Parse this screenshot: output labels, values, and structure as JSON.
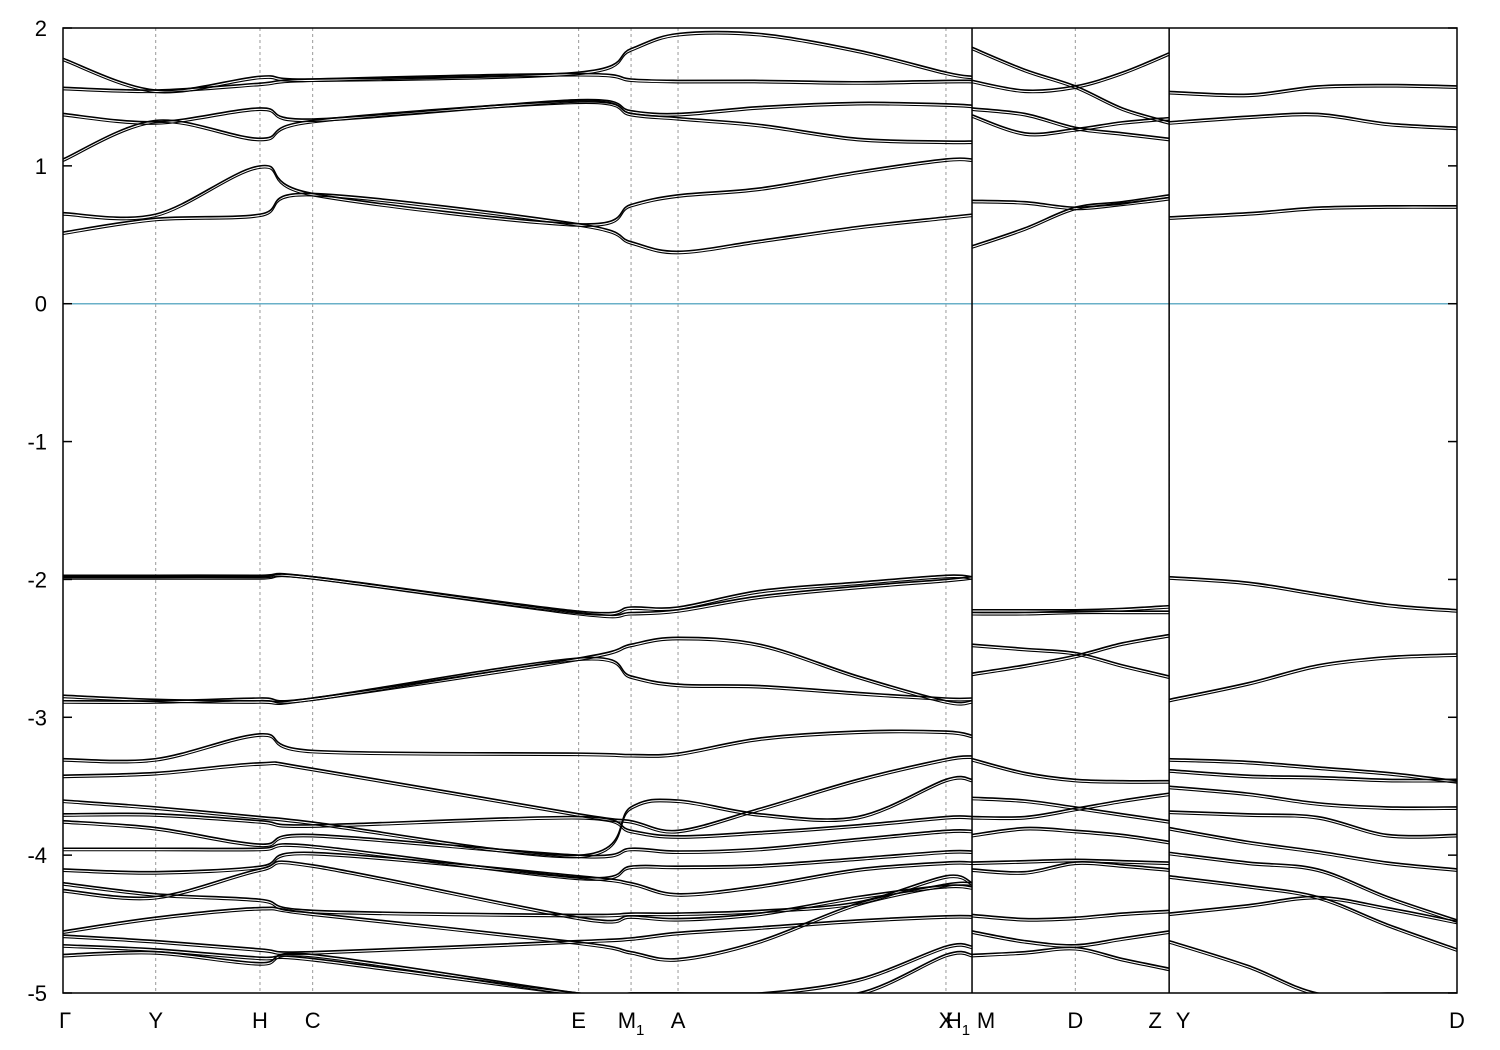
{
  "chart_data": {
    "type": "line",
    "title": "",
    "xlabel": "",
    "ylabel": "",
    "ylim": [
      -5,
      2
    ],
    "yticks": [
      2,
      1,
      0,
      -1,
      -2,
      -3,
      -4,
      -5
    ],
    "ytick_labels": [
      "2",
      "1",
      "0",
      "-1",
      "-2",
      "-3",
      "-4",
      "-5"
    ],
    "grid": "vertical dashed lines at high-symmetry points",
    "fermi_level": 0,
    "fermi_color": "#6ab0c8",
    "band_color": "#000000",
    "kpoints": [
      {
        "main": "Γ",
        "sub": "",
        "x": 0.0
      },
      {
        "main": "Y",
        "sub": "",
        "x": 0.0665
      },
      {
        "main": "H",
        "sub": "",
        "x": 0.1413
      },
      {
        "main": "C",
        "sub": "",
        "x": 0.1791
      },
      {
        "main": "E",
        "sub": "",
        "x": 0.3699
      },
      {
        "main": "M",
        "sub": "1",
        "x": 0.4075
      },
      {
        "main": "A",
        "sub": "",
        "x": 0.4412
      },
      {
        "main": "X",
        "sub": "",
        "x": 0.6334
      },
      {
        "main": "H",
        "sub": "1",
        "x": 0.6521
      },
      {
        "main": "M",
        "sub": "",
        "x": 0.6521
      },
      {
        "main": "D",
        "sub": "",
        "x": 0.7262
      },
      {
        "main": "Z",
        "sub": "",
        "x": 0.7935
      },
      {
        "main": "Y",
        "sub": "",
        "x": 0.7935
      },
      {
        "main": "D",
        "sub": "",
        "x": 1.0
      }
    ],
    "segments": [
      {
        "name": "Γ-Y-H-C-E-M1-A-X-H1",
        "x": [
          0.0,
          0.0665,
          0.1413,
          0.1791,
          0.3699,
          0.4075,
          0.4412,
          0.5,
          0.57,
          0.6334,
          0.6521
        ],
        "bands": [
          [
            -4.72,
            -4.7,
            -4.78,
            -4.72,
            -5.0,
            -5.0,
            -5.0,
            -5.0,
            -5.0,
            -4.72,
            -4.72
          ],
          [
            -4.65,
            -4.68,
            -4.74,
            -4.75,
            -5.0,
            -5.0,
            -5.0,
            -5.0,
            -4.9,
            -4.66,
            -4.66
          ],
          [
            -4.58,
            -4.62,
            -4.68,
            -4.7,
            -4.62,
            -4.6,
            -4.56,
            -4.52,
            -4.47,
            -4.44,
            -4.44
          ],
          [
            -4.55,
            -4.45,
            -4.38,
            -4.42,
            -4.63,
            -4.7,
            -4.75,
            -4.62,
            -4.35,
            -4.21,
            -4.2
          ],
          [
            -4.25,
            -4.3,
            -4.1,
            -4.07,
            -4.45,
            -4.44,
            -4.46,
            -4.42,
            -4.3,
            -4.22,
            -4.23
          ],
          [
            -4.2,
            -4.28,
            -4.32,
            -4.4,
            -4.43,
            -4.42,
            -4.42,
            -4.4,
            -4.34,
            -4.15,
            -4.2
          ],
          [
            -4.1,
            -4.12,
            -4.08,
            -3.98,
            -4.15,
            -4.2,
            -4.28,
            -4.22,
            -4.1,
            -4.05,
            -4.05
          ],
          [
            -3.95,
            -3.95,
            -3.95,
            -3.93,
            -4.16,
            -4.08,
            -4.08,
            -4.07,
            -4.02,
            -3.97,
            -3.97
          ],
          [
            -3.75,
            -3.8,
            -3.92,
            -3.85,
            -4.0,
            -3.95,
            -3.97,
            -3.95,
            -3.88,
            -3.82,
            -3.82
          ],
          [
            -3.7,
            -3.7,
            -3.75,
            -3.78,
            -3.72,
            -3.82,
            -3.86,
            -3.83,
            -3.78,
            -3.72,
            -3.72
          ],
          [
            -3.6,
            -3.65,
            -3.72,
            -3.76,
            -4.0,
            -3.65,
            -3.6,
            -3.7,
            -3.72,
            -3.45,
            -3.45
          ],
          [
            -3.42,
            -3.4,
            -3.33,
            -3.37,
            -3.7,
            -3.75,
            -3.82,
            -3.66,
            -3.45,
            -3.3,
            -3.28
          ],
          [
            -3.3,
            -3.3,
            -3.12,
            -3.24,
            -3.26,
            -3.27,
            -3.26,
            -3.15,
            -3.1,
            -3.1,
            -3.13
          ],
          [
            -2.88,
            -2.88,
            -2.86,
            -2.86,
            -2.57,
            -2.7,
            -2.76,
            -2.77,
            -2.82,
            -2.86,
            -2.86
          ],
          [
            -2.84,
            -2.87,
            -2.88,
            -2.86,
            -2.57,
            -2.47,
            -2.42,
            -2.47,
            -2.7,
            -2.88,
            -2.88
          ],
          [
            -1.98,
            -1.98,
            -1.98,
            -1.98,
            -2.23,
            -2.2,
            -2.2,
            -2.08,
            -2.02,
            -1.97,
            -1.98
          ],
          [
            -1.97,
            -1.97,
            -1.97,
            -1.98,
            -2.24,
            -2.24,
            -2.22,
            -2.12,
            -2.05,
            -2.0,
            -1.98
          ],
          [
            0.52,
            0.62,
            0.65,
            0.8,
            0.58,
            0.45,
            0.38,
            0.46,
            0.56,
            0.63,
            0.65
          ],
          [
            0.66,
            0.65,
            1.0,
            0.8,
            0.58,
            0.72,
            0.79,
            0.84,
            0.96,
            1.05,
            1.05
          ],
          [
            1.05,
            1.33,
            1.2,
            1.33,
            1.47,
            1.38,
            1.35,
            1.3,
            1.2,
            1.18,
            1.18
          ],
          [
            1.38,
            1.32,
            1.42,
            1.34,
            1.48,
            1.4,
            1.38,
            1.43,
            1.46,
            1.45,
            1.44
          ],
          [
            1.57,
            1.55,
            1.6,
            1.63,
            1.67,
            1.63,
            1.62,
            1.62,
            1.61,
            1.62,
            1.62
          ],
          [
            1.78,
            1.55,
            1.65,
            1.63,
            1.68,
            1.85,
            1.96,
            1.96,
            1.84,
            1.68,
            1.65
          ]
        ]
      },
      {
        "name": "M-D-Z",
        "x": [
          0.6521,
          0.69,
          0.7262,
          0.76,
          0.7935
        ],
        "bands": [
          [
            -4.72,
            -4.7,
            -4.67,
            -4.75,
            -4.82
          ],
          [
            -4.55,
            -4.62,
            -4.65,
            -4.6,
            -4.55
          ],
          [
            -4.43,
            -4.46,
            -4.45,
            -4.42,
            -4.4
          ],
          [
            -4.1,
            -4.12,
            -4.05,
            -4.07,
            -4.1
          ],
          [
            -4.05,
            -4.04,
            -4.03,
            -4.04,
            -4.05
          ],
          [
            -3.85,
            -3.8,
            -3.82,
            -3.85,
            -3.9
          ],
          [
            -3.72,
            -3.72,
            -3.66,
            -3.6,
            -3.55
          ],
          [
            -3.58,
            -3.6,
            -3.65,
            -3.7,
            -3.75
          ],
          [
            -3.3,
            -3.4,
            -3.45,
            -3.46,
            -3.46
          ],
          [
            -2.68,
            -2.62,
            -2.55,
            -2.46,
            -2.4
          ],
          [
            -2.47,
            -2.5,
            -2.53,
            -2.62,
            -2.7
          ],
          [
            -2.22,
            -2.22,
            -2.22,
            -2.21,
            -2.19
          ],
          [
            -2.24,
            -2.24,
            -2.23,
            -2.23,
            -2.23
          ],
          [
            0.42,
            0.55,
            0.7,
            0.74,
            0.79
          ],
          [
            0.75,
            0.74,
            0.7,
            0.73,
            0.77
          ],
          [
            1.37,
            1.24,
            1.27,
            1.32,
            1.35
          ],
          [
            1.42,
            1.38,
            1.28,
            1.24,
            1.2
          ],
          [
            1.62,
            1.55,
            1.58,
            1.68,
            1.82
          ],
          [
            1.86,
            1.7,
            1.58,
            1.42,
            1.32
          ]
        ]
      },
      {
        "name": "Y-D",
        "x": [
          0.7935,
          0.85,
          0.9,
          0.95,
          1.0
        ],
        "bands": [
          [
            -4.62,
            -4.8,
            -5.0,
            -5.0,
            -5.0
          ],
          [
            -4.42,
            -4.36,
            -4.3,
            -4.38,
            -4.48
          ],
          [
            -4.15,
            -4.22,
            -4.3,
            -4.5,
            -4.68
          ],
          [
            -3.98,
            -4.05,
            -4.1,
            -4.3,
            -4.47
          ],
          [
            -3.8,
            -3.9,
            -3.97,
            -4.05,
            -4.1
          ],
          [
            -3.68,
            -3.7,
            -3.72,
            -3.85,
            -3.85
          ],
          [
            -3.5,
            -3.55,
            -3.62,
            -3.65,
            -3.65
          ],
          [
            -3.38,
            -3.42,
            -3.43,
            -3.45,
            -3.45
          ],
          [
            -3.3,
            -3.32,
            -3.36,
            -3.4,
            -3.46
          ],
          [
            -2.87,
            -2.75,
            -2.62,
            -2.56,
            -2.54
          ],
          [
            -1.98,
            -2.02,
            -2.1,
            -2.18,
            -2.22
          ],
          [
            0.63,
            0.66,
            0.7,
            0.71,
            0.71
          ],
          [
            1.32,
            1.36,
            1.38,
            1.31,
            1.28
          ],
          [
            1.54,
            1.52,
            1.58,
            1.59,
            1.58
          ]
        ]
      }
    ]
  }
}
